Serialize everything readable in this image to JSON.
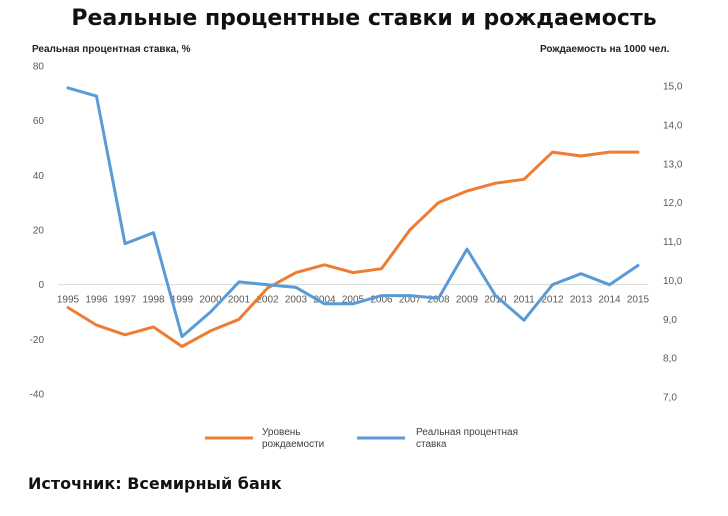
{
  "title": "Реальные процентные ставки и рождаемость",
  "source": "Источник: Всемирный банк",
  "chart_data": {
    "type": "line",
    "title": "Реальные процентные ставки и рождаемость",
    "ylabel_left": "Реальная процентная ставка, %",
    "ylabel_right": "Рождаемость на 1000 чел.",
    "x": [
      "1995",
      "1996",
      "1997",
      "1998",
      "1999",
      "2000",
      "2001",
      "2002",
      "2003",
      "2004",
      "2005",
      "2006",
      "2007",
      "2008",
      "2009",
      "2010",
      "2011",
      "2012",
      "2013",
      "2014",
      "2015"
    ],
    "ylim_left": [
      -40,
      80
    ],
    "yticks_left": [
      "80",
      "60",
      "40",
      "20",
      "0",
      "-20",
      "-40"
    ],
    "yticks_left_values": [
      80,
      60,
      40,
      20,
      0,
      -20,
      -40
    ],
    "ylim_right": [
      7.0,
      15.0
    ],
    "yticks_right": [
      "15,0",
      "14,0",
      "13,0",
      "12,0",
      "11,0",
      "10,0",
      "9,0",
      "8,0",
      "7,0"
    ],
    "yticks_right_values": [
      15,
      14,
      13,
      12,
      11,
      10,
      9,
      8,
      7
    ],
    "series": [
      {
        "name": "Уровень рождаемости",
        "legend_lines": [
          "Уровень",
          "рождаемости"
        ],
        "axis": "right",
        "color": "#ED7D31",
        "values": [
          9.3,
          8.85,
          8.6,
          8.8,
          8.3,
          8.7,
          9.0,
          9.8,
          10.2,
          10.4,
          10.2,
          10.3,
          11.3,
          12.0,
          12.3,
          12.5,
          12.6,
          13.3,
          13.2,
          13.3,
          13.3
        ]
      },
      {
        "name": "Реальная процентная ставка",
        "legend_lines": [
          "Реальная процентная",
          "ставка"
        ],
        "axis": "left",
        "color": "#5B9BD5",
        "values": [
          72,
          69,
          15,
          19,
          -19,
          -10,
          1,
          0,
          -1,
          -7,
          -7,
          -4,
          -4,
          -5,
          13,
          -4,
          -13,
          0,
          4,
          0,
          7
        ]
      }
    ],
    "grid": false,
    "legend": "bottom"
  }
}
